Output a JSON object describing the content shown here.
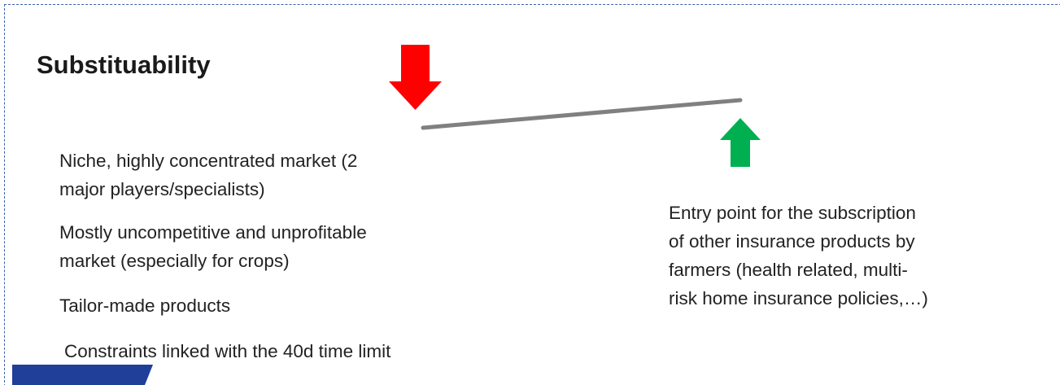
{
  "title": "Substituability",
  "left_items": [
    [
      "Niche, highly concentrated market (2",
      "major players/specialists)"
    ],
    [
      "Mostly uncompetitive and unprofitable",
      "market (especially for crops)"
    ],
    [
      "Tailor-made products"
    ],
    [
      "Constraints linked with the 40d time limit"
    ]
  ],
  "right_text": [
    "Entry point for the subscription",
    "of other insurance products by",
    "farmers (health related, multi-",
    "risk home insurance policies,…)"
  ]
}
